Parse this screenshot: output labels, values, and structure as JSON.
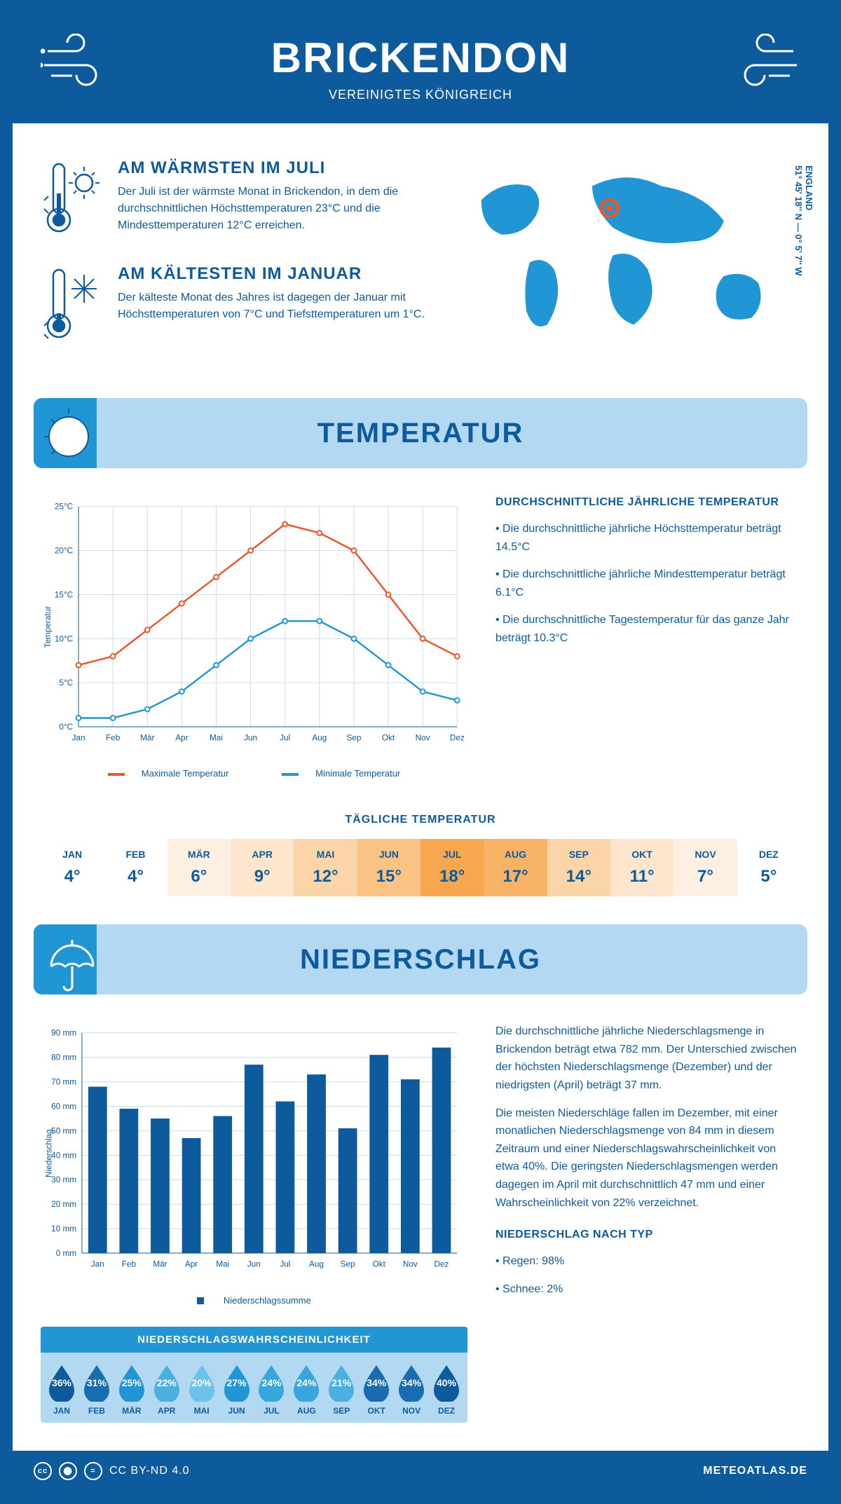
{
  "header": {
    "title": "BRICKENDON",
    "subtitle": "VEREINIGTES KÖNIGREICH",
    "bg": "#0d5a9d"
  },
  "coords": {
    "lat": "51° 45' 18'' N — 0° 5' 7'' W",
    "region": "ENGLAND"
  },
  "facts": {
    "warm": {
      "title": "AM WÄRMSTEN IM JULI",
      "text": "Der Juli ist der wärmste Monat in Brickendon, in dem die durchschnittlichen Höchsttemperaturen 23°C und die Mindesttemperaturen 12°C erreichen."
    },
    "cold": {
      "title": "AM KÄLTESTEN IM JANUAR",
      "text": "Der kälteste Monat des Jahres ist dagegen der Januar mit Höchsttemperaturen von 7°C und Tiefsttemperaturen um 1°C."
    }
  },
  "months": [
    "Jan",
    "Feb",
    "Mär",
    "Apr",
    "Mai",
    "Jun",
    "Jul",
    "Aug",
    "Sep",
    "Okt",
    "Nov",
    "Dez"
  ],
  "months_upper": [
    "JAN",
    "FEB",
    "MÄR",
    "APR",
    "MAI",
    "JUN",
    "JUL",
    "AUG",
    "SEP",
    "OKT",
    "NOV",
    "DEZ"
  ],
  "temperature": {
    "section_title": "TEMPERATUR",
    "ylabel": "Temperatur",
    "max_values": [
      7,
      8,
      11,
      14,
      17,
      20,
      23,
      22,
      20,
      15,
      10,
      8
    ],
    "min_values": [
      1,
      1,
      2,
      4,
      7,
      10,
      12,
      12,
      10,
      7,
      4,
      3
    ],
    "max_color": "#e8582a",
    "min_color": "#2196d4",
    "grid_color": "#c9dcec",
    "ylim": [
      0,
      25
    ],
    "ytick_step": 5,
    "legend_max": "Maximale Temperatur",
    "legend_min": "Minimale Temperatur",
    "desc_title": "DURCHSCHNITTLICHE JÄHRLICHE TEMPERATUR",
    "bullets": [
      "• Die durchschnittliche jährliche Höchsttemperatur beträgt 14.5°C",
      "• Die durchschnittliche jährliche Mindesttemperatur beträgt 6.1°C",
      "• Die durchschnittliche Tagestemperatur für das ganze Jahr beträgt 10.3°C"
    ]
  },
  "daily": {
    "title": "TÄGLICHE TEMPERATUR",
    "values": [
      "4°",
      "4°",
      "6°",
      "9°",
      "12°",
      "15°",
      "18°",
      "17°",
      "14°",
      "11°",
      "7°",
      "5°"
    ],
    "cell_colors": [
      "#ffffff",
      "#ffffff",
      "#fdf0e2",
      "#fde6cd",
      "#fbd5a8",
      "#fac383",
      "#f8a74f",
      "#f9b367",
      "#fbd5a8",
      "#fde6cd",
      "#fdf0e2",
      "#ffffff"
    ]
  },
  "precip": {
    "section_title": "NIEDERSCHLAG",
    "ylabel": "Niederschlag",
    "values": [
      68,
      59,
      55,
      47,
      56,
      77,
      62,
      73,
      51,
      81,
      71,
      84
    ],
    "bar_color": "#0d5a9d",
    "grid_color": "#c9dcec",
    "ylim": [
      0,
      90
    ],
    "ytick_step": 10,
    "unit": "mm",
    "legend_label": "Niederschlagssumme",
    "desc1": "Die durchschnittliche jährliche Niederschlagsmenge in Brickendon beträgt etwa 782 mm. Der Unterschied zwischen der höchsten Niederschlagsmenge (Dezember) und der niedrigsten (April) beträgt 37 mm.",
    "desc2": "Die meisten Niederschläge fallen im Dezember, mit einer monatlichen Niederschlagsmenge von 84 mm in diesem Zeitraum und einer Niederschlagswahrscheinlichkeit von etwa 40%. Die geringsten Niederschlagsmengen werden dagegen im April mit durchschnittlich 47 mm und einer Wahrscheinlichkeit von 22% verzeichnet.",
    "type_title": "NIEDERSCHLAG NACH TYP",
    "type_bullets": [
      "• Regen: 98%",
      "• Schnee: 2%"
    ]
  },
  "probability": {
    "title": "NIEDERSCHLAGSWAHRSCHEINLICHKEIT",
    "values": [
      "36%",
      "31%",
      "25%",
      "22%",
      "20%",
      "27%",
      "24%",
      "24%",
      "21%",
      "34%",
      "34%",
      "40%"
    ],
    "colors": [
      "#0d5a9d",
      "#1a6cb0",
      "#2196d4",
      "#4bb0e0",
      "#6cc3e9",
      "#2196d4",
      "#38a6da",
      "#38a6da",
      "#4bb0e0",
      "#1a6cb0",
      "#1a6cb0",
      "#0d5a9d"
    ]
  },
  "footer": {
    "license": "CC BY-ND 4.0",
    "site": "METEOATLAS.DE"
  },
  "colors": {
    "primary": "#0d5a9d",
    "accent": "#2196d4",
    "light": "#b3d9f2"
  }
}
